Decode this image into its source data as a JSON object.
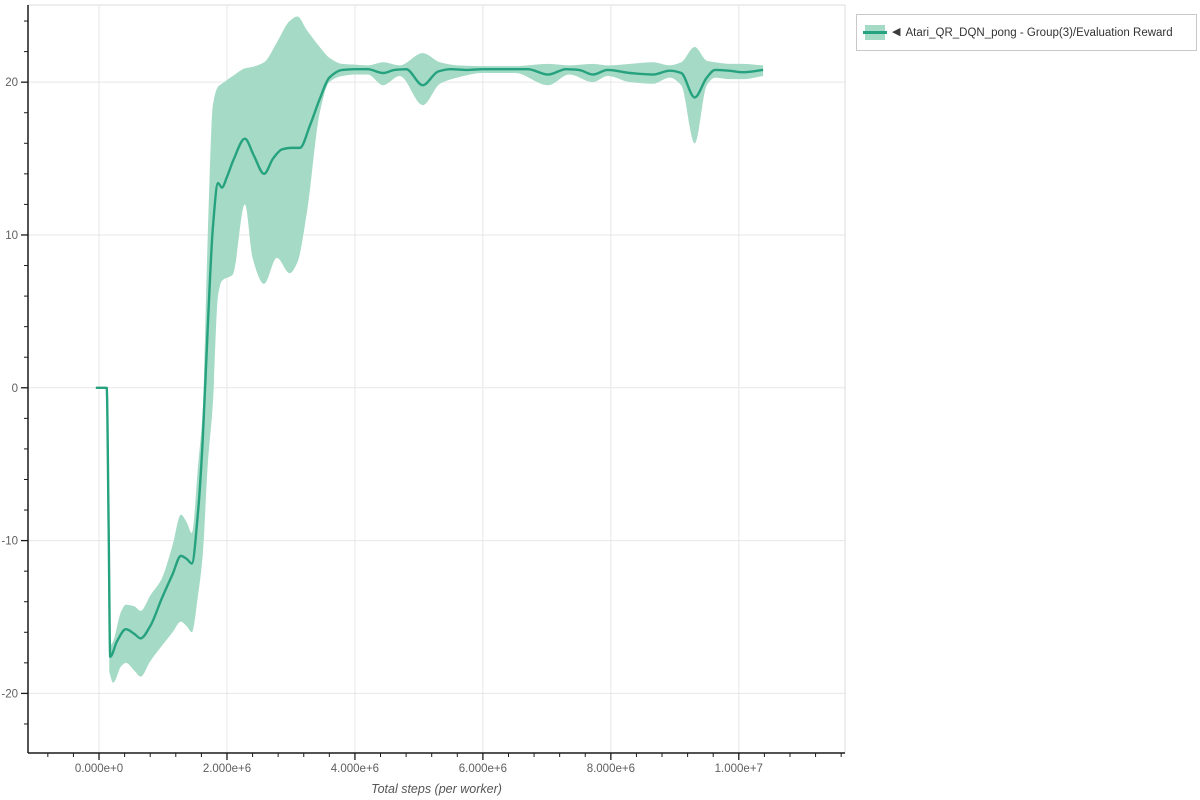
{
  "chart_data": {
    "type": "line",
    "title": "",
    "xlabel": "Total steps (per worker)",
    "ylabel": "",
    "grid": true,
    "legend": {
      "position": "top-right",
      "items": [
        {
          "collapse_glyph": "◀",
          "label": "Atari_QR_DQN_pong - Group(3)/Evaluation Reward",
          "line_color": "#26a27f",
          "band_color": "#a5dac6"
        }
      ]
    },
    "axes": {
      "x": {
        "lim_e6": [
          -1.11,
          11.66
        ],
        "unit": "steps",
        "major_ticks": [
          {
            "v_e6": 0,
            "label": "0.000e+0"
          },
          {
            "v_e6": 2,
            "label": "2.000e+6"
          },
          {
            "v_e6": 4,
            "label": "4.000e+6"
          },
          {
            "v_e6": 6,
            "label": "6.000e+6"
          },
          {
            "v_e6": 8,
            "label": "8.000e+6"
          },
          {
            "v_e6": 10,
            "label": "1.000e+7"
          }
        ],
        "minor_step_e6": 0.4,
        "minor_start_e6": -0.8,
        "minor_end_e6": 11.6
      },
      "y": {
        "lim": [
          -23.9,
          25.05
        ],
        "major_ticks": [
          {
            "v": 20,
            "label": "20"
          },
          {
            "v": 10,
            "label": "10"
          },
          {
            "v": 0,
            "label": "0"
          },
          {
            "v": -10,
            "label": "-10"
          },
          {
            "v": -20,
            "label": "-20"
          }
        ],
        "minor_step": 2,
        "minor_start": -22,
        "minor_end": 24
      }
    },
    "series": [
      {
        "name": "Atari_QR_DQN_pong - Group(3)/Evaluation Reward",
        "x_e6": [
          -0.05,
          0.12,
          0.15,
          0.175,
          0.28,
          0.42,
          0.55,
          0.65,
          0.8,
          0.98,
          1.15,
          1.28,
          1.37,
          1.45,
          1.55,
          1.62,
          1.7,
          1.78,
          1.86,
          1.92,
          2.0,
          2.1,
          2.28,
          2.42,
          2.58,
          2.72,
          2.86,
          3.0,
          3.14,
          3.3,
          3.45,
          3.6,
          3.8,
          4.0,
          4.2,
          4.44,
          4.62,
          4.8,
          5.06,
          5.3,
          5.5,
          5.75,
          6.0,
          6.4,
          6.7,
          7.02,
          7.3,
          7.5,
          7.72,
          7.95,
          8.3,
          8.66,
          8.92,
          9.1,
          9.31,
          9.5,
          9.63,
          9.85,
          10.06,
          10.38
        ],
        "y": [
          0,
          0,
          -9,
          -17.6,
          -16.6,
          -15.8,
          -16.1,
          -16.4,
          -15.6,
          -13.8,
          -12.2,
          -11.0,
          -11.2,
          -11.5,
          -8.0,
          -3.5,
          4.0,
          10.5,
          13.4,
          13.1,
          13.8,
          14.9,
          16.3,
          15.2,
          14.0,
          15.0,
          15.6,
          15.7,
          15.7,
          17.2,
          18.9,
          20.3,
          20.8,
          20.85,
          20.85,
          20.6,
          20.8,
          20.85,
          19.8,
          20.7,
          20.85,
          20.8,
          20.85,
          20.85,
          20.85,
          20.5,
          20.85,
          20.8,
          20.5,
          20.8,
          20.6,
          20.5,
          20.75,
          20.6,
          19.0,
          20.3,
          20.8,
          20.75,
          20.65,
          20.8
        ],
        "band": {
          "x_e6": [
            0.16,
            0.22,
            0.35,
            0.42,
            0.55,
            0.65,
            0.8,
            0.98,
            1.15,
            1.28,
            1.37,
            1.45,
            1.55,
            1.62,
            1.7,
            1.78,
            1.86,
            1.92,
            2.09,
            2.28,
            2.4,
            2.58,
            2.78,
            2.98,
            3.1,
            3.25,
            3.45,
            3.6,
            3.8,
            4.0,
            4.2,
            4.44,
            4.7,
            5.06,
            5.33,
            5.6,
            6.0,
            6.5,
            7.02,
            7.35,
            7.72,
            7.95,
            8.3,
            8.66,
            8.92,
            9.1,
            9.31,
            9.5,
            9.63,
            9.85,
            10.06,
            10.38
          ],
          "lo": [
            -18.6,
            -19.3,
            -18.2,
            -18.0,
            -18.5,
            -18.9,
            -17.9,
            -16.9,
            -16.0,
            -15.3,
            -15.6,
            -16.0,
            -13.5,
            -11.0,
            -5.0,
            -1.0,
            6.0,
            7.0,
            7.4,
            12.0,
            8.5,
            6.8,
            8.5,
            7.5,
            8.2,
            11.5,
            18.0,
            20.0,
            20.4,
            20.5,
            20.5,
            19.8,
            20.4,
            18.5,
            19.9,
            20.3,
            20.6,
            20.6,
            19.8,
            20.5,
            20.0,
            20.4,
            20.0,
            19.9,
            20.3,
            19.8,
            16.0,
            19.8,
            20.3,
            20.2,
            20.2,
            20.4
          ],
          "hi": [
            -17.0,
            -16.6,
            -14.6,
            -14.2,
            -14.3,
            -14.6,
            -13.6,
            -12.5,
            -10.3,
            -8.3,
            -8.8,
            -9.5,
            -5.0,
            -1.5,
            10.0,
            18.5,
            19.7,
            19.9,
            20.4,
            20.9,
            21.0,
            21.3,
            22.6,
            24.0,
            24.3,
            23.4,
            22.3,
            21.6,
            21.2,
            21.15,
            21.1,
            21.3,
            21.1,
            21.9,
            21.3,
            21.1,
            21.05,
            21.05,
            21.2,
            21.1,
            21.2,
            21.1,
            21.2,
            21.3,
            21.1,
            21.3,
            22.3,
            21.4,
            21.3,
            21.2,
            21.2,
            21.1
          ]
        }
      }
    ],
    "style": {
      "grid_color": "#e7e7e7",
      "border_color": "#dcdcdc",
      "axis_color": "#1a1a1a",
      "tick_label_color": "#5f5f5f",
      "xlabel_color": "#555555",
      "background": "#ffffff"
    }
  }
}
